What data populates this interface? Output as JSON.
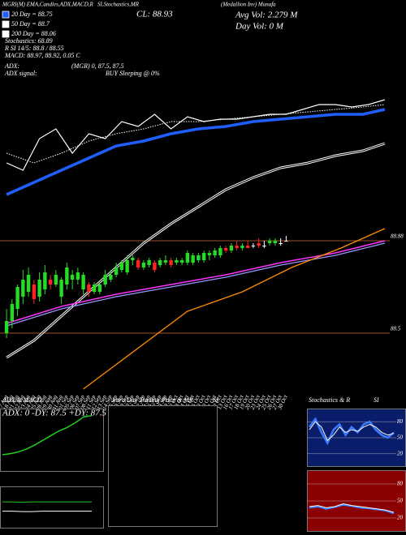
{
  "chart_data": [
    {
      "type": "candlestick",
      "title": "MGRI(M) EMA,Candles,ADX,MACD,R",
      "subtitle": "SI,Stochastics,MR",
      "close_label": "CL: 88.93",
      "company": "(Medallion Inv) Munafa",
      "avg_volume": "Avg Vol: 2.279 M",
      "day_volume": "Day Vol: 0   M",
      "annotations": [
        "Stochastics: 68.89",
        "R SI 14/5: 88.8 / 88.55",
        "MACD: 88.97, 88.92, 0.05 C",
        "ADX:",
        "(MGR) 0, 87.5, 87.5",
        "ADX  signal:",
        "BUY Sleeping @ 0%"
      ],
      "xlim": [
        -1.2,
        69.9
      ],
      "ylim": [
        88.27,
        89.87
      ],
      "yticks": [
        88.5,
        88.88
      ],
      "grid_color": "#a0522d",
      "xticks": [
        {
          "value": 0,
          "label": "17 Aug"
        },
        {
          "value": 1,
          "label": "18 Aug"
        },
        {
          "value": 2,
          "label": "21 Aug"
        },
        {
          "value": 3,
          "label": "22 Aug"
        },
        {
          "value": 4,
          "label": "23 Aug"
        },
        {
          "value": 5,
          "label": "24 Aug"
        },
        {
          "value": 6,
          "label": "25 Aug"
        },
        {
          "value": 7,
          "label": "28 Aug"
        },
        {
          "value": 8,
          "label": "29 Aug"
        },
        {
          "value": 9,
          "label": "30 Aug"
        },
        {
          "value": 10,
          "label": "31 Aug"
        },
        {
          "value": 11,
          "label": "01 Sep"
        },
        {
          "value": 12,
          "label": "05 Sep"
        },
        {
          "value": 13,
          "label": "06 Sep"
        },
        {
          "value": 14,
          "label": "07 Sep"
        },
        {
          "value": 15,
          "label": "08 Sep"
        },
        {
          "value": 16,
          "label": "11 Sep"
        },
        {
          "value": 17,
          "label": "12 Sep"
        },
        {
          "value": 18,
          "label": "13 Sep"
        },
        {
          "value": 19,
          "label": "14 Sep"
        },
        {
          "value": 20,
          "label": "15 Sep"
        },
        {
          "value": 21,
          "label": "18 Sep"
        },
        {
          "value": 22,
          "label": "19 Sep"
        },
        {
          "value": 23,
          "label": "20 Sep"
        },
        {
          "value": 24,
          "label": "21 Sep"
        },
        {
          "value": 25,
          "label": "22 Sep"
        },
        {
          "value": 26,
          "label": "25 Sep"
        },
        {
          "value": 27,
          "label": "26 Sep"
        },
        {
          "value": 28,
          "label": "27 Sep"
        },
        {
          "value": 29,
          "label": "28 Sep"
        },
        {
          "value": 30,
          "label": "29 Sep"
        },
        {
          "value": 31,
          "label": "02 Oct"
        },
        {
          "value": 32,
          "label": "03 Oct"
        },
        {
          "value": 33,
          "label": "04 Oct"
        },
        {
          "value": 34,
          "label": "05 Oct"
        },
        {
          "value": 35,
          "label": "06 Oct"
        },
        {
          "value": 36,
          "label": "09 Oct"
        },
        {
          "value": 37,
          "label": "10 Oct"
        },
        {
          "value": 38,
          "label": "11 Oct"
        },
        {
          "value": 39,
          "label": "12 Oct"
        },
        {
          "value": 40,
          "label": "13 Oct"
        },
        {
          "value": 41,
          "label": "16 Oct"
        },
        {
          "value": 42,
          "label": "17 Oct"
        },
        {
          "value": 43,
          "label": "18 Oct"
        },
        {
          "value": 44,
          "label": "19 Oct"
        },
        {
          "value": 45,
          "label": "20 Oct"
        },
        {
          "value": 46,
          "label": "23 Oct"
        },
        {
          "value": 47,
          "label": "24 Oct"
        },
        {
          "value": 48,
          "label": "25 Oct"
        },
        {
          "value": 49,
          "label": "26 Oct"
        },
        {
          "value": 50,
          "label": "27 Oct"
        },
        {
          "value": 51,
          "label": "30 Oct"
        }
      ],
      "candles": {
        "up_color": "#22dd22",
        "down_color": "#ff2222",
        "flat_color": "#ffffff",
        "x": [
          0,
          1,
          2,
          3,
          4,
          5,
          6,
          7,
          8,
          9,
          10,
          11,
          12,
          13,
          14,
          15,
          16,
          17,
          18,
          19,
          20,
          21,
          22,
          23,
          24,
          25,
          26,
          27,
          28,
          29,
          30,
          31,
          32,
          33,
          34,
          35,
          36,
          37,
          38,
          39,
          40,
          41,
          42,
          43,
          44,
          45,
          46,
          47,
          48,
          49,
          50,
          51
        ],
        "open": [
          88.5,
          88.55,
          88.6,
          88.65,
          88.67,
          88.7,
          88.65,
          88.68,
          88.72,
          88.7,
          88.65,
          88.7,
          88.72,
          88.72,
          88.68,
          88.7,
          88.67,
          88.67,
          88.7,
          88.72,
          88.74,
          88.76,
          88.75,
          88.8,
          88.8,
          88.77,
          88.78,
          88.79,
          88.78,
          88.79,
          88.8,
          88.79,
          88.79,
          88.79,
          88.79,
          88.8,
          88.8,
          88.82,
          88.82,
          88.82,
          88.85,
          88.84,
          88.86,
          88.85,
          88.86,
          88.86,
          88.87,
          88.86,
          88.87,
          88.87,
          88.87,
          88.88
        ],
        "high": [
          88.6,
          88.64,
          88.7,
          88.76,
          88.77,
          88.72,
          88.75,
          88.78,
          88.74,
          88.76,
          88.73,
          88.79,
          88.76,
          88.77,
          88.75,
          88.71,
          88.71,
          88.71,
          88.76,
          88.76,
          88.79,
          88.8,
          88.82,
          88.82,
          88.81,
          88.8,
          88.81,
          88.8,
          88.81,
          88.82,
          88.81,
          88.81,
          88.81,
          88.84,
          88.83,
          88.83,
          88.84,
          88.84,
          88.85,
          88.86,
          88.86,
          88.87,
          88.88,
          88.87,
          88.88,
          88.87,
          88.89,
          88.88,
          88.89,
          88.89,
          88.89,
          88.9
        ],
        "low": [
          88.48,
          88.52,
          88.57,
          88.62,
          88.65,
          88.62,
          88.63,
          88.66,
          88.68,
          88.69,
          88.62,
          88.68,
          88.68,
          88.7,
          88.66,
          88.65,
          88.66,
          88.66,
          88.69,
          88.71,
          88.73,
          88.75,
          88.74,
          88.78,
          88.76,
          88.76,
          88.77,
          88.75,
          88.77,
          88.78,
          88.77,
          88.78,
          88.78,
          88.78,
          88.78,
          88.79,
          88.79,
          88.8,
          88.81,
          88.81,
          88.83,
          88.83,
          88.84,
          88.84,
          88.85,
          88.85,
          88.85,
          88.85,
          88.86,
          88.86,
          88.86,
          88.88
        ],
        "close": [
          88.55,
          88.62,
          88.69,
          88.72,
          88.74,
          88.64,
          88.72,
          88.75,
          88.7,
          88.74,
          88.72,
          88.77,
          88.74,
          88.75,
          88.74,
          88.67,
          88.7,
          88.7,
          88.74,
          88.74,
          88.77,
          88.79,
          88.8,
          88.81,
          88.77,
          88.79,
          88.8,
          88.76,
          88.8,
          88.8,
          88.78,
          88.8,
          88.8,
          88.83,
          88.82,
          88.82,
          88.83,
          88.83,
          88.84,
          88.85,
          88.84,
          88.86,
          88.85,
          88.86,
          88.85,
          88.86,
          88.86,
          88.86,
          88.88,
          88.88,
          88.87,
          88.88
        ]
      },
      "series": [
        {
          "name": "20 Day = 88.75",
          "color": "#1f5fff",
          "width": 3.5,
          "x": [
            0,
            5,
            10,
            15,
            20,
            25,
            30,
            35,
            40,
            45,
            50,
            55,
            60,
            65,
            69
          ],
          "values": [
            89.07,
            89.12,
            89.17,
            89.22,
            89.27,
            89.29,
            89.32,
            89.34,
            89.35,
            89.37,
            89.38,
            89.39,
            89.4,
            89.4,
            89.42
          ]
        },
        {
          "name": "50 Day = 88.7",
          "color": "#ffffff",
          "width": 1,
          "dash": true,
          "x": [
            0,
            5,
            10,
            15,
            20,
            25,
            30,
            35,
            40,
            45,
            50,
            55,
            60,
            65,
            69
          ],
          "values": [
            89.24,
            89.2,
            89.24,
            89.29,
            89.32,
            89.34,
            89.37,
            89.37,
            89.38,
            89.39,
            89.4,
            89.41,
            89.42,
            89.43,
            89.44
          ]
        },
        {
          "name": "200 Day = 88.06",
          "color": "#ffffff",
          "width": 3,
          "double": true,
          "x": [
            0,
            5,
            10,
            15,
            20,
            25,
            30,
            35,
            40,
            45,
            50,
            55,
            60,
            65,
            69
          ],
          "values": [
            88.4,
            88.47,
            88.57,
            88.67,
            88.77,
            88.87,
            88.95,
            89.02,
            89.09,
            89.14,
            89.18,
            89.2,
            89.23,
            89.25,
            89.28
          ]
        },
        {
          "color": "#ffffff",
          "width": 1.2,
          "x": [
            0,
            3,
            6,
            9,
            12,
            15,
            18,
            21,
            24,
            27,
            30,
            33,
            36,
            39,
            42,
            45,
            48,
            51,
            54,
            57,
            60,
            63,
            66,
            69
          ],
          "values": [
            89.2,
            89.17,
            89.3,
            89.34,
            89.24,
            89.32,
            89.3,
            89.37,
            89.35,
            89.4,
            89.34,
            89.39,
            89.37,
            89.38,
            89.38,
            89.39,
            89.4,
            89.4,
            89.42,
            89.44,
            89.44,
            89.43,
            89.44,
            89.46
          ]
        },
        {
          "color": "#9999ff",
          "width": 1.2,
          "x": [
            0,
            10,
            20,
            30,
            40,
            50,
            60,
            69
          ],
          "values": [
            88.53,
            88.6,
            88.65,
            88.69,
            88.73,
            88.78,
            88.82,
            88.87
          ]
        },
        {
          "color": "#ff33ff",
          "width": 1.5,
          "x": [
            0,
            10,
            20,
            30,
            40,
            50,
            60,
            69
          ],
          "values": [
            88.54,
            88.61,
            88.66,
            88.7,
            88.74,
            88.79,
            88.83,
            88.88
          ]
        },
        {
          "color": "#ff8c00",
          "width": 1.3,
          "x": [
            14,
            33,
            43,
            52,
            61,
            69
          ],
          "values": [
            88.27,
            88.59,
            88.67,
            88.77,
            88.85,
            88.93
          ]
        }
      ]
    },
    {
      "type": "line",
      "title": "ADX  & MACD",
      "annotation": "ADX: 0  -DY: 87.5  +DY: 87.5",
      "ylim": [
        0,
        100
      ],
      "series": [
        {
          "color": "#22cc22",
          "width": 1.5,
          "values": [
            25,
            27,
            30,
            35,
            42,
            50,
            58,
            66,
            72,
            80,
            90,
            92
          ]
        }
      ]
    },
    {
      "type": "line",
      "ylim": [
        -1,
        1
      ],
      "series": [
        {
          "color": "#22cc22",
          "width": 1,
          "values": [
            0.3,
            0.3,
            0.28,
            0.3,
            0.3,
            0.3,
            0.3,
            0.3,
            0.3,
            0.3
          ]
        },
        {
          "color": "#ffffff",
          "width": 1,
          "values": [
            -0.2,
            -0.2,
            -0.22,
            -0.22,
            -0.2,
            -0.2,
            -0.2,
            -0.2,
            -0.2,
            -0.2
          ]
        }
      ]
    },
    {
      "type": "line",
      "title": [
        "Intra Day Trading Price  & MR",
        "SI"
      ]
    },
    {
      "type": "line",
      "title": [
        "Stochastics & R",
        "SI"
      ],
      "background": "#0a1d6a",
      "ylim": [
        0,
        100
      ],
      "yticks": [
        80,
        50,
        20
      ],
      "series": [
        {
          "color": "#3a7bff",
          "width": 2.5,
          "values": [
            70,
            85,
            60,
            40,
            65,
            75,
            55,
            70,
            60,
            75,
            80,
            65,
            55,
            50,
            60
          ]
        },
        {
          "color": "#ffffff",
          "width": 1,
          "values": [
            65,
            80,
            70,
            45,
            55,
            70,
            60,
            65,
            62,
            70,
            75,
            70,
            60,
            55,
            58
          ]
        }
      ]
    },
    {
      "type": "line",
      "background": "#8b0000",
      "ylim": [
        0,
        100
      ],
      "yticks": [
        80,
        50,
        20
      ],
      "series": [
        {
          "color": "#3a7bff",
          "width": 2,
          "values": [
            38,
            40,
            36,
            39,
            43,
            41,
            38,
            37,
            35,
            33,
            28
          ]
        },
        {
          "color": "#ffffff",
          "width": 1,
          "values": [
            40,
            42,
            38,
            40,
            45,
            42,
            40,
            38,
            36,
            34,
            30
          ]
        }
      ]
    }
  ]
}
